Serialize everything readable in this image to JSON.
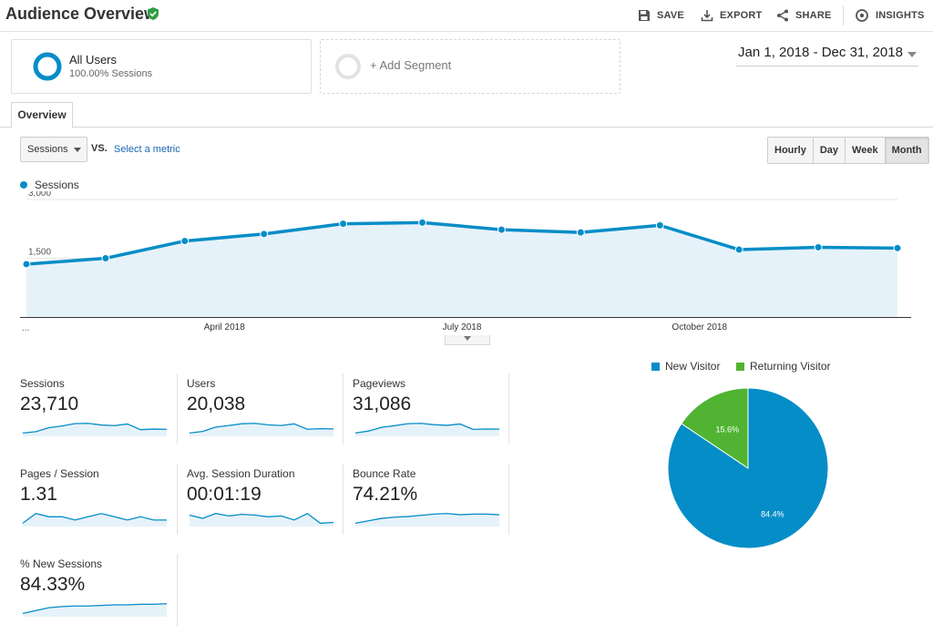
{
  "header": {
    "title": "Audience Overview",
    "save": "SAVE",
    "export": "EXPORT",
    "share": "SHARE",
    "insights": "INSIGHTS"
  },
  "segments": {
    "primary_name": "All Users",
    "primary_sub": "100.00% Sessions",
    "add": "+ Add Segment"
  },
  "date_range": "Jan 1, 2018 - Dec 31, 2018",
  "tabs": {
    "overview": "Overview"
  },
  "controls": {
    "metric": "Sessions",
    "vs": "VS.",
    "select_metric": "Select a metric",
    "periods": [
      "Hourly",
      "Day",
      "Week",
      "Month"
    ],
    "active_period": "Month"
  },
  "colors": {
    "accent": "#058dc7",
    "returning": "#50b432"
  },
  "chart_data": [
    {
      "type": "line",
      "legend": "Sessions",
      "y_ticks": [
        "3,000",
        "1,500"
      ],
      "ylim": [
        0,
        3000
      ],
      "x_labels": [
        {
          "month": 3,
          "label": "April 2018"
        },
        {
          "month": 6,
          "label": "July 2018"
        },
        {
          "month": 9,
          "label": "October 2018"
        }
      ],
      "x_start_label": "...",
      "series": [
        {
          "name": "Sessions",
          "x": [
            "Jan 2018",
            "Feb 2018",
            "Mar 2018",
            "Apr 2018",
            "May 2018",
            "Jun 2018",
            "Jul 2018",
            "Aug 2018",
            "Sep 2018",
            "Oct 2018",
            "Nov 2018",
            "Dec 2018"
          ],
          "values": [
            1350,
            1500,
            1940,
            2120,
            2380,
            2410,
            2230,
            2160,
            2340,
            1720,
            1780,
            1760
          ]
        }
      ]
    },
    {
      "type": "pie",
      "legend": [
        "New Visitor",
        "Returning Visitor"
      ],
      "slices": [
        {
          "name": "New Visitor",
          "value": 84.4,
          "label": "84.4%",
          "color": "#058dc7"
        },
        {
          "name": "Returning Visitor",
          "value": 15.6,
          "label": "15.6%",
          "color": "#50b432"
        }
      ]
    }
  ],
  "metrics": [
    {
      "label": "Sessions",
      "value": "23,710",
      "spark": [
        1350,
        1500,
        1940,
        2120,
        2380,
        2410,
        2230,
        2160,
        2340,
        1720,
        1780,
        1760
      ]
    },
    {
      "label": "Users",
      "value": "20,038",
      "spark": [
        1100,
        1250,
        1650,
        1800,
        1960,
        2000,
        1860,
        1800,
        1950,
        1450,
        1500,
        1480
      ]
    },
    {
      "label": "Pageviews",
      "value": "31,086",
      "spark": [
        1700,
        2000,
        2550,
        2800,
        3100,
        3150,
        2950,
        2850,
        3050,
        2250,
        2300,
        2280
      ]
    },
    {
      "label": "Pages / Session",
      "value": "1.31",
      "spark": [
        1.29,
        1.32,
        1.31,
        1.31,
        1.3,
        1.31,
        1.32,
        1.31,
        1.3,
        1.31,
        1.3,
        1.3
      ]
    },
    {
      "label": "Avg. Session Duration",
      "value": "00:01:19",
      "spark": [
        80,
        76,
        82,
        79,
        81,
        80,
        78,
        79,
        74,
        82,
        70,
        71
      ]
    },
    {
      "label": "Bounce Rate",
      "value": "74.21%",
      "spark": [
        73.0,
        73.4,
        73.8,
        74.0,
        74.1,
        74.3,
        74.5,
        74.6,
        74.4,
        74.5,
        74.5,
        74.4
      ]
    },
    {
      "label": "% New Sessions",
      "value": "84.33%",
      "spark": [
        83.0,
        83.5,
        84.0,
        84.2,
        84.3,
        84.3,
        84.4,
        84.5,
        84.5,
        84.6,
        84.6,
        84.7
      ]
    }
  ]
}
